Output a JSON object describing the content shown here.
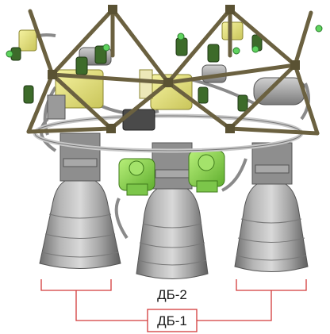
{
  "labels": {
    "db2": "ДБ-2",
    "db1": "ДБ-1"
  },
  "colors": {
    "background": "#ffffff",
    "frame_truss": "#6b6140",
    "nozzle": "#9a9a9a",
    "yellow_units": "#e6e27a",
    "green_units": "#8bd34f",
    "bracket_lines": "#d23a3a"
  }
}
